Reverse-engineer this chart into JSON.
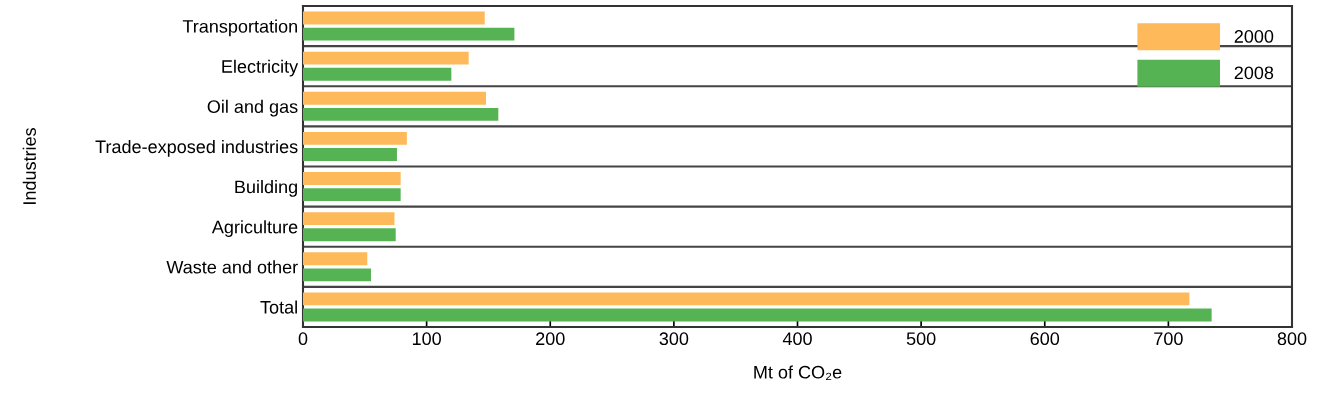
{
  "chart_data": {
    "type": "bar",
    "orientation": "horizontal",
    "xlabel": "Mt of CO₂e",
    "ylabel": "Industries",
    "categories": [
      "Transportation",
      "Electricity",
      "Oil and gas",
      "Trade-exposed industries",
      "Building",
      "Agriculture",
      "Waste and other",
      "Total"
    ],
    "series": [
      {
        "name": "2000",
        "color": "#fdb95a",
        "values": [
          147,
          134,
          148,
          84,
          79,
          74,
          52,
          717
        ]
      },
      {
        "name": "2008",
        "color": "#56b354",
        "values": [
          171,
          120,
          158,
          76,
          79,
          75,
          55,
          735
        ]
      }
    ],
    "xlim": [
      0,
      800
    ],
    "xticks": [
      0,
      100,
      200,
      300,
      400,
      500,
      600,
      700,
      800
    ],
    "grid": "y",
    "legend": "top right"
  }
}
